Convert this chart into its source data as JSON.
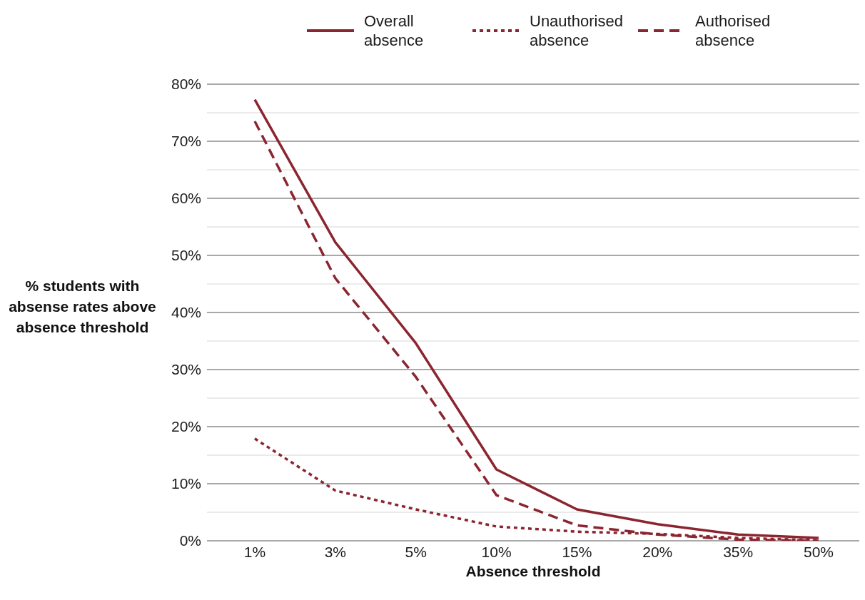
{
  "chart_data": {
    "type": "line",
    "xlabel": "Absence threshold",
    "ylabel": "% students with absense rates above absence threshold",
    "categories": [
      "1%",
      "3%",
      "5%",
      "10%",
      "15%",
      "20%",
      "35%",
      "50%"
    ],
    "series": [
      {
        "name": "Overall absence",
        "color": "#8b2530",
        "line_style": "solid",
        "values": [
          77.3,
          52.3,
          34.6,
          12.5,
          5.5,
          2.9,
          1.1,
          0.5
        ]
      },
      {
        "name": "Unauthorised absence",
        "color": "#8b2530",
        "line_style": "dotted",
        "values": [
          17.9,
          8.8,
          5.5,
          2.5,
          1.6,
          1.2,
          0.5,
          0.1
        ]
      },
      {
        "name": "Authorised absence",
        "color": "#8b2530",
        "line_style": "dashed",
        "values": [
          73.5,
          46,
          28.7,
          8,
          2.7,
          1.1,
          0.2,
          0
        ]
      }
    ],
    "ylim": [
      0,
      80
    ],
    "yticks": [
      {
        "value": 0,
        "label": "0%"
      },
      {
        "value": 5,
        "label": null
      },
      {
        "value": 10,
        "label": "10%"
      },
      {
        "value": 15,
        "label": null
      },
      {
        "value": 20,
        "label": "20%"
      },
      {
        "value": 25,
        "label": null
      },
      {
        "value": 30,
        "label": "30%"
      },
      {
        "value": 35,
        "label": null
      },
      {
        "value": 40,
        "label": "40%"
      },
      {
        "value": 45,
        "label": null
      },
      {
        "value": 50,
        "label": "50%"
      },
      {
        "value": 55,
        "label": null
      },
      {
        "value": 60,
        "label": "60%"
      },
      {
        "value": 65,
        "label": null
      },
      {
        "value": 70,
        "label": "70%"
      },
      {
        "value": 75,
        "label": null
      },
      {
        "value": 80,
        "label": "80%"
      }
    ],
    "grid": "y",
    "legend": "top right",
    "marker": "none"
  }
}
